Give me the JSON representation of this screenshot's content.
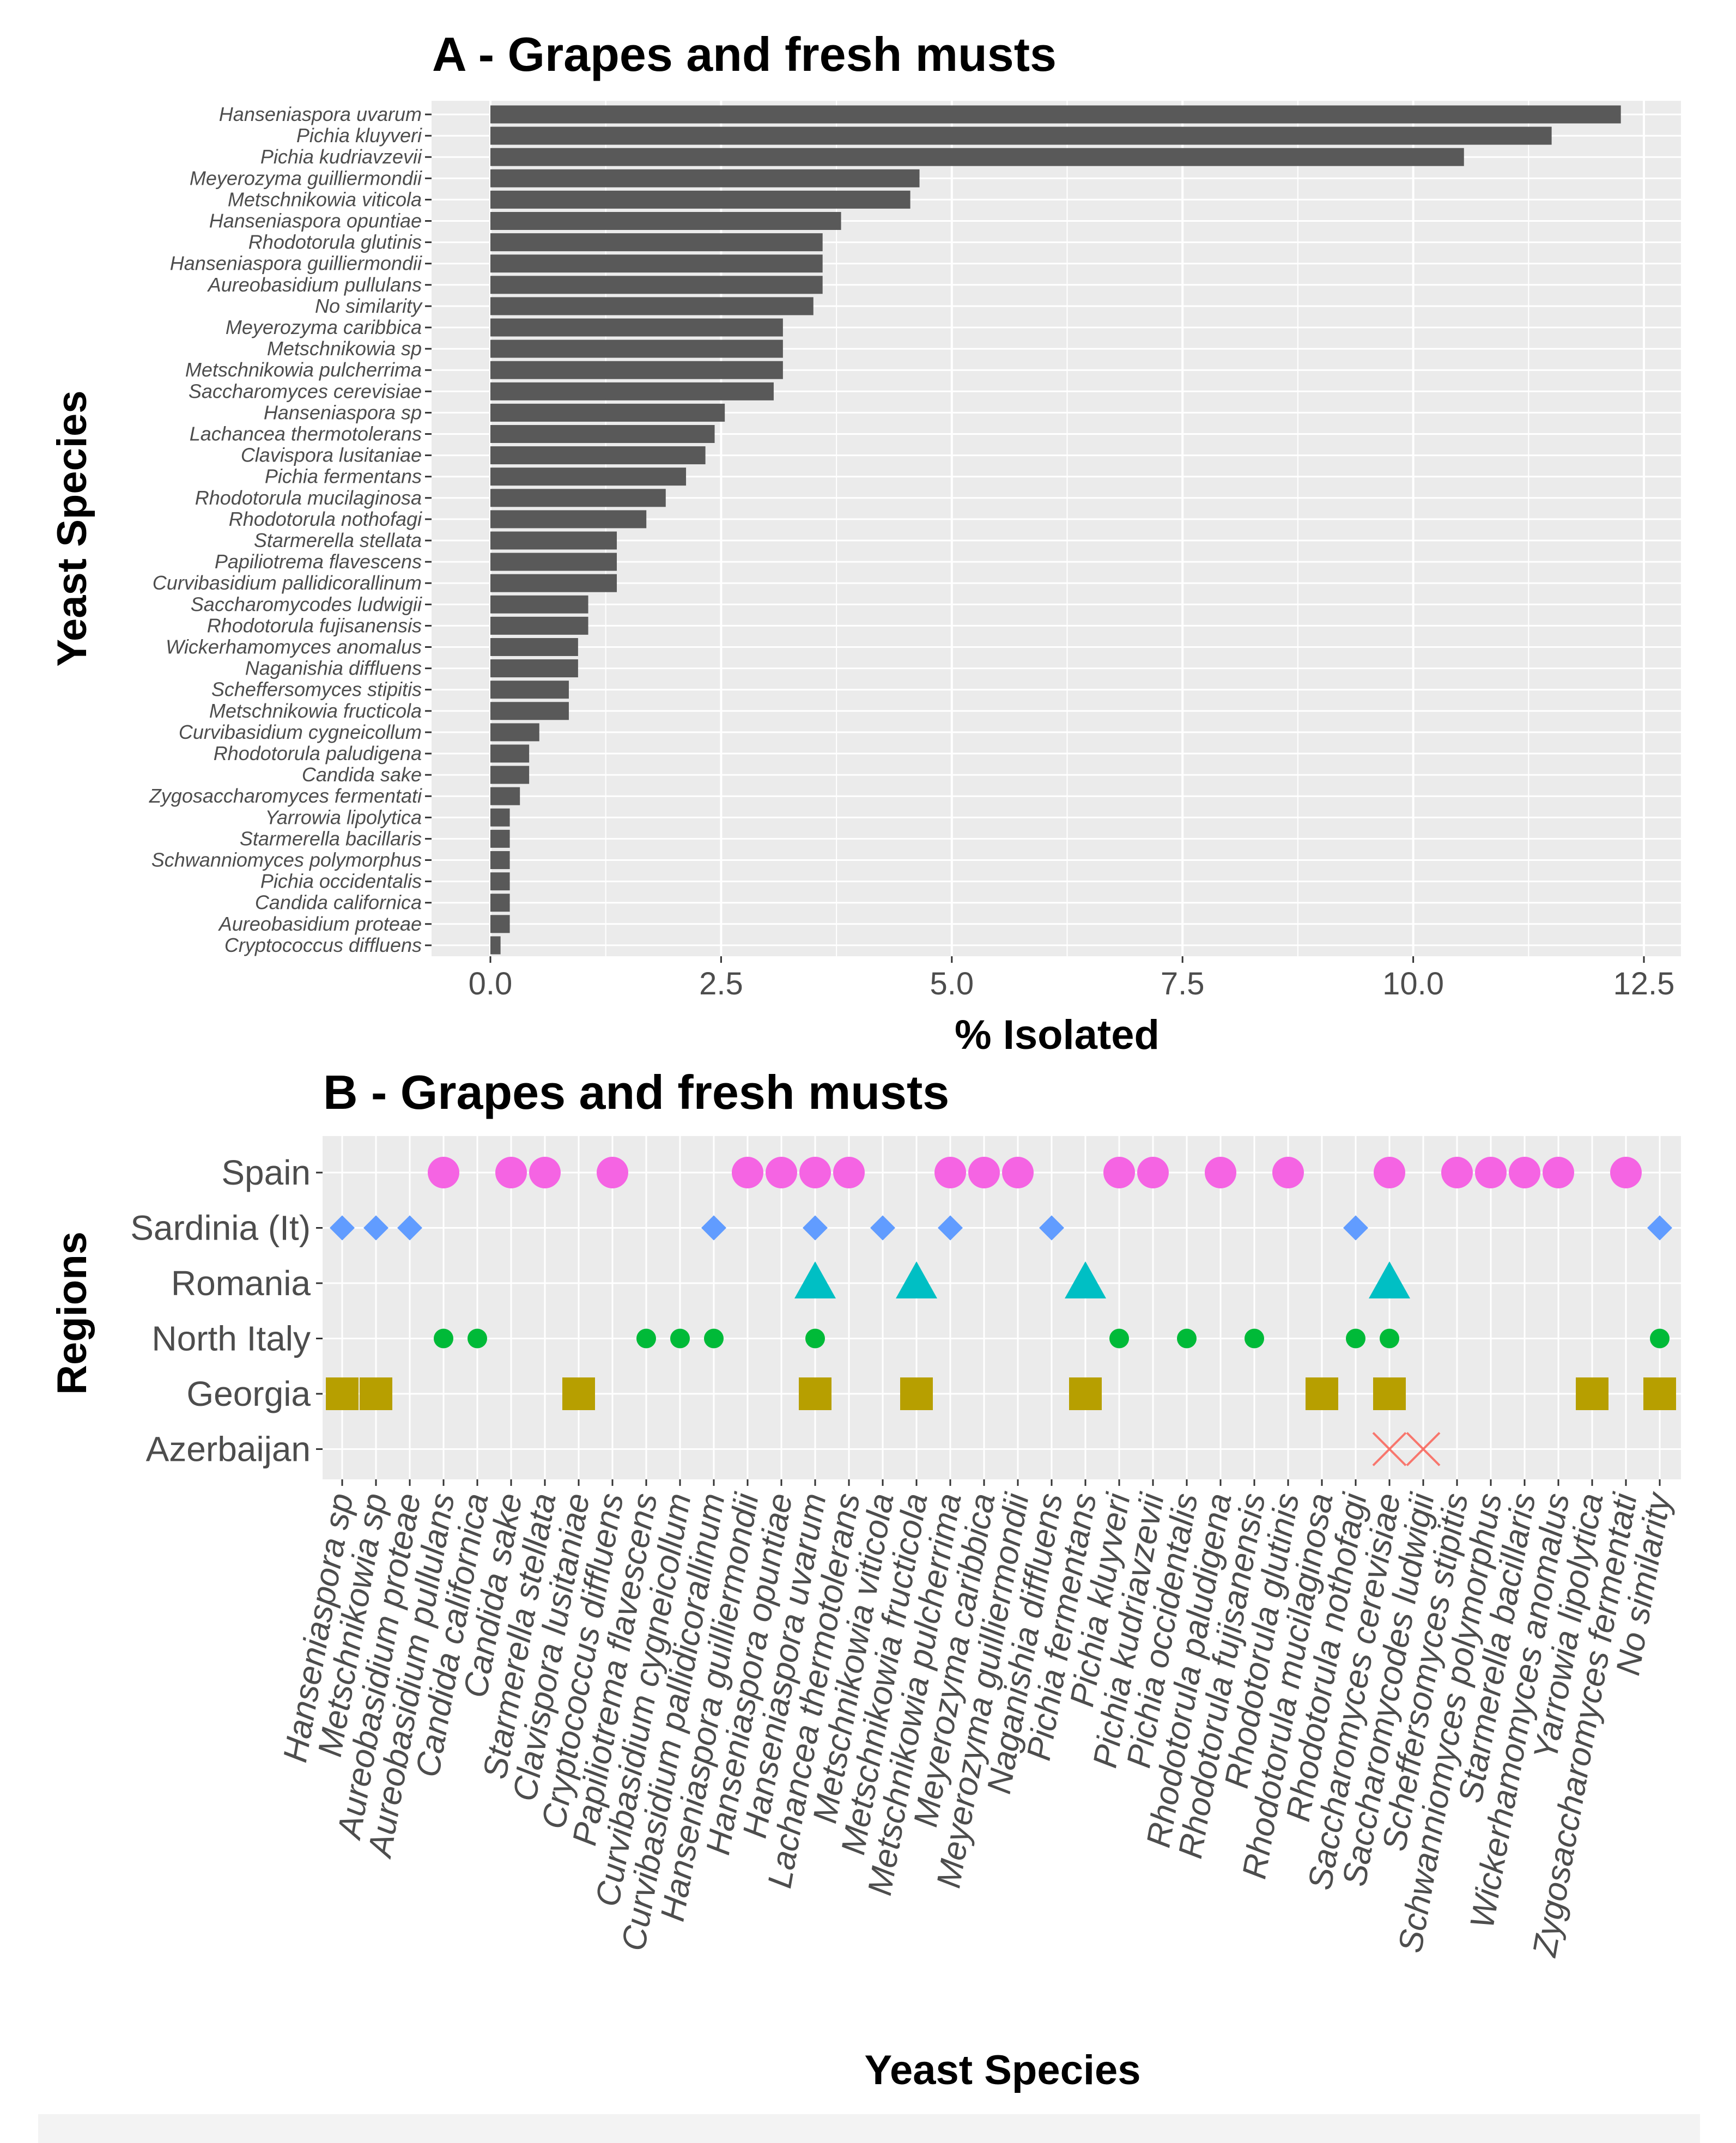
{
  "chart_data": [
    {
      "type": "bar",
      "orientation": "horizontal",
      "title": "A - Grapes and fresh musts",
      "xlabel": "% Isolated",
      "ylabel": "Yeast Species",
      "xlim": [
        0,
        12.5
      ],
      "xticks": [
        "0.0",
        "2.5",
        "5.0",
        "7.5",
        "10.0",
        "12.5"
      ],
      "categories": [
        "Hanseniaspora uvarum",
        "Pichia kluyveri",
        "Pichia kudriavzevii",
        "Meyerozyma guilliermondii",
        "Metschnikowia viticola",
        "Hanseniaspora opuntiae",
        "Rhodotorula glutinis",
        "Hanseniaspora guilliermondii",
        "Aureobasidium pullulans",
        "No similarity",
        "Meyerozyma caribbica",
        "Metschnikowia sp",
        "Metschnikowia pulcherrima",
        "Saccharomyces cerevisiae",
        "Hanseniaspora sp",
        "Lachancea thermotolerans",
        "Clavispora lusitaniae",
        "Pichia fermentans",
        "Rhodotorula mucilaginosa",
        "Rhodotorula nothofagi",
        "Starmerella stellata",
        "Papiliotrema flavescens",
        "Curvibasidium pallidicorallinum",
        "Saccharomycodes ludwigii",
        "Rhodotorula fujisanensis",
        "Wickerhamomyces anomalus",
        "Naganishia diffluens",
        "Scheffersomyces stipitis",
        "Metschnikowia fructicola",
        "Curvibasidium cygneicollum",
        "Rhodotorula paludigena",
        "Candida sake",
        "Zygosaccharomyces fermentati",
        "Yarrowia lipolytica",
        "Starmerella bacillaris",
        "Schwanniomyces polymorphus",
        "Pichia occidentalis",
        "Candida californica",
        "Aureobasidium proteae",
        "Cryptococcus diffluens"
      ],
      "values": [
        12.25,
        11.5,
        10.55,
        4.65,
        4.55,
        3.8,
        3.6,
        3.6,
        3.6,
        3.5,
        3.17,
        3.17,
        3.17,
        3.07,
        2.54,
        2.43,
        2.33,
        2.12,
        1.9,
        1.69,
        1.37,
        1.37,
        1.37,
        1.06,
        1.06,
        0.95,
        0.95,
        0.85,
        0.85,
        0.53,
        0.42,
        0.42,
        0.32,
        0.21,
        0.21,
        0.21,
        0.21,
        0.21,
        0.21,
        0.11
      ]
    },
    {
      "type": "scatter",
      "title": "B - Grapes and fresh musts",
      "xlabel": "Yeast Species",
      "ylabel": "Regions",
      "regions": [
        "Spain",
        "Sardinia (It)",
        "Romania",
        "North Italy",
        "Georgia",
        "Azerbaijan"
      ],
      "species": [
        "Hanseniaspora sp",
        "Metschnikowia sp",
        "Aureobasidium proteae",
        "Aureobasidium pullulans",
        "Candida californica",
        "Candida sake",
        "Starmerella stellata",
        "Clavispora lusitaniae",
        "Cryptococcus diffluens",
        "Papiliotrema flavescens",
        "Curvibasidium cygneicollum",
        "Curvibasidium pallidicorallinum",
        "Hanseniaspora guilliermondii",
        "Hanseniaspora opuntiae",
        "Hanseniaspora uvarum",
        "Lachancea thermotolerans",
        "Metschnikowia viticola",
        "Metschnikowia fructicola",
        "Metschnikowia pulcherrima",
        "Meyerozyma caribbica",
        "Meyerozyma guilliermondii",
        "Naganishia diffluens",
        "Pichia fermentans",
        "Pichia kluyveri",
        "Pichia kudriavzevii",
        "Pichia occidentalis",
        "Rhodotorula paludigena",
        "Rhodotorula fujisanensis",
        "Rhodotorula glutinis",
        "Rhodotorula mucilaginosa",
        "Rhodotorula nothofagi",
        "Saccharomyces cerevisiae",
        "Saccharomycodes ludwigii",
        "Scheffersomyces stipitis",
        "Schwanniomyces polymorphus",
        "Starmerella bacillaris",
        "Wickerhamomyces anomalus",
        "Yarrowia lipolytica",
        "Zygosaccharomyces fermentati",
        "No similarity"
      ],
      "series": [
        {
          "name": "Spain",
          "color": "#f564e3",
          "shape": "circle",
          "x": [
            "Aureobasidium pullulans",
            "Candida sake",
            "Starmerella stellata",
            "Cryptococcus diffluens",
            "Hanseniaspora guilliermondii",
            "Hanseniaspora opuntiae",
            "Hanseniaspora uvarum",
            "Lachancea thermotolerans",
            "Metschnikowia pulcherrima",
            "Meyerozyma caribbica",
            "Meyerozyma guilliermondii",
            "Pichia kluyveri",
            "Pichia kudriavzevii",
            "Rhodotorula paludigena",
            "Rhodotorula glutinis",
            "Saccharomyces cerevisiae",
            "Scheffersomyces stipitis",
            "Schwanniomyces polymorphus",
            "Starmerella bacillaris",
            "Wickerhamomyces anomalus",
            "Zygosaccharomyces fermentati"
          ]
        },
        {
          "name": "Sardinia (It)",
          "color": "#619cff",
          "shape": "diamond",
          "x": [
            "Hanseniaspora sp",
            "Metschnikowia sp",
            "Aureobasidium proteae",
            "Curvibasidium pallidicorallinum",
            "Hanseniaspora uvarum",
            "Metschnikowia viticola",
            "Metschnikowia pulcherrima",
            "Naganishia diffluens",
            "Rhodotorula nothofagi",
            "No similarity"
          ]
        },
        {
          "name": "Romania",
          "color": "#00bfc4",
          "shape": "triangle",
          "x": [
            "Hanseniaspora uvarum",
            "Metschnikowia fructicola",
            "Pichia fermentans",
            "Saccharomyces cerevisiae"
          ]
        },
        {
          "name": "North Italy",
          "color": "#00ba38",
          "shape": "small-circle",
          "x": [
            "Aureobasidium pullulans",
            "Candida californica",
            "Papiliotrema flavescens",
            "Curvibasidium cygneicollum",
            "Curvibasidium pallidicorallinum",
            "Hanseniaspora uvarum",
            "Pichia kluyveri",
            "Pichia occidentalis",
            "Rhodotorula fujisanensis",
            "Rhodotorula nothofagi",
            "Saccharomyces cerevisiae",
            "No similarity"
          ]
        },
        {
          "name": "Georgia",
          "color": "#b79f00",
          "shape": "square",
          "x": [
            "Hanseniaspora sp",
            "Metschnikowia sp",
            "Clavispora lusitaniae",
            "Hanseniaspora uvarum",
            "Metschnikowia fructicola",
            "Pichia fermentans",
            "Rhodotorula mucilaginosa",
            "Saccharomyces cerevisiae",
            "Yarrowia lipolytica",
            "No similarity"
          ]
        },
        {
          "name": "Azerbaijan",
          "color": "#f8766d",
          "shape": "cross",
          "x": [
            "Saccharomyces cerevisiae",
            "Saccharomycodes ludwigii"
          ]
        }
      ]
    }
  ]
}
